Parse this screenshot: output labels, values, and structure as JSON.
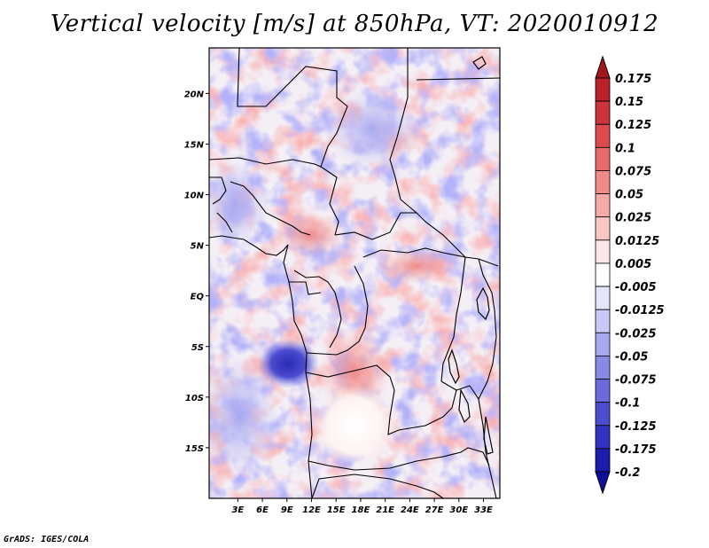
{
  "chart_data": {
    "type": "heatmap",
    "title": "Vertical velocity [m/s] at 850hPa, VT: 2020010912",
    "variable": "Vertical velocity",
    "units": "m/s",
    "level": "850hPa",
    "valid_time": "2020010912",
    "x": {
      "label": "",
      "range": [
        -0.5,
        35
      ],
      "ticks": [
        3,
        6,
        9,
        12,
        15,
        18,
        21,
        24,
        27,
        30,
        33
      ],
      "tick_labels": [
        "3E",
        "6E",
        "9E",
        "12E",
        "15E",
        "18E",
        "21E",
        "24E",
        "27E",
        "30E",
        "33E"
      ]
    },
    "y": {
      "label": "",
      "range": [
        -20,
        24.5
      ],
      "ticks": [
        20,
        15,
        10,
        5,
        0,
        -5,
        -10,
        -15
      ],
      "tick_labels": [
        "20N",
        "15N",
        "10N",
        "5N",
        "EQ",
        "5S",
        "10S",
        "15S"
      ]
    },
    "colorbar": {
      "levels": [
        "0.175",
        "0.15",
        "0.125",
        "0.1",
        "0.075",
        "0.05",
        "0.025",
        "0.0125",
        "0.005",
        "-0.005",
        "-0.0125",
        "-0.025",
        "-0.05",
        "-0.075",
        "-0.1",
        "-0.125",
        "-0.175",
        "-0.2"
      ],
      "colors": [
        "#a3161c",
        "#b82228",
        "#cc333a",
        "#dc4a4e",
        "#e86a6a",
        "#f08a88",
        "#f6aaa6",
        "#fac8c4",
        "#fde6e4",
        "#ffffff",
        "#e4e4fb",
        "#c8c8f6",
        "#a8a8ef",
        "#8888e6",
        "#6a6adc",
        "#4c4cd0",
        "#3232c0",
        "#1c1cac",
        "#0e0e98"
      ]
    },
    "features": [
      {
        "name": "strong subsidence core",
        "lon": 9.5,
        "lat": -6.5,
        "value": -0.2
      },
      {
        "name": "weak motion area",
        "lon": 16.5,
        "lat": -14,
        "value": 0.0
      }
    ]
  },
  "credit": "GrADS: IGES/COLA"
}
